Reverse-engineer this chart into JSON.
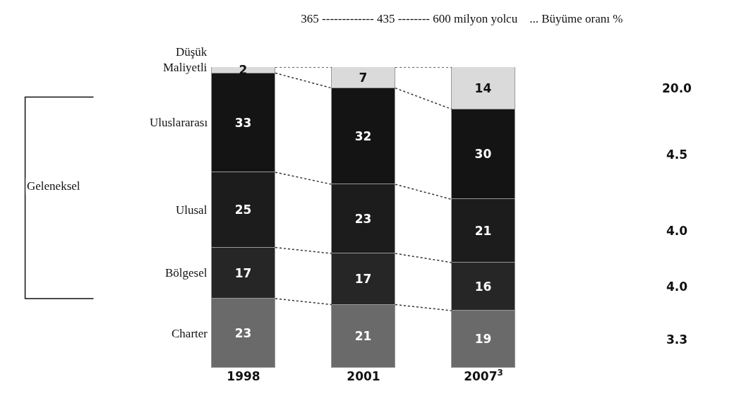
{
  "chart_data": {
    "type": "bar",
    "stacked": true,
    "title": "365 ------------- 435 -------- 600 milyon yolcu    ... Büyüme oranı %",
    "categories": [
      "1998",
      "2001",
      "2007$^{3}$"
    ],
    "series": [
      {
        "name": "Charter",
        "color": "#6a6a6a",
        "values": [
          23,
          21,
          19
        ]
      },
      {
        "name": "Bölgesel",
        "color": "#262626",
        "values": [
          17,
          17,
          16
        ]
      },
      {
        "name": "Ulusal",
        "color": "#1c1c1c",
        "values": [
          25,
          23,
          21
        ]
      },
      {
        "name": "Uluslararası",
        "color": "#141414",
        "values": [
          33,
          32,
          30
        ]
      },
      {
        "name": "Düşük Maliyetli",
        "color": "#dadada",
        "values": [
          2,
          7,
          14
        ]
      }
    ],
    "annotations": [
      "Geleneksel",
      "3.3",
      "4.0",
      "4.0",
      "4.5",
      "20.0"
    ],
    "ylim": [
      0,
      100
    ],
    "data_labels": true,
    "legend": false
  }
}
